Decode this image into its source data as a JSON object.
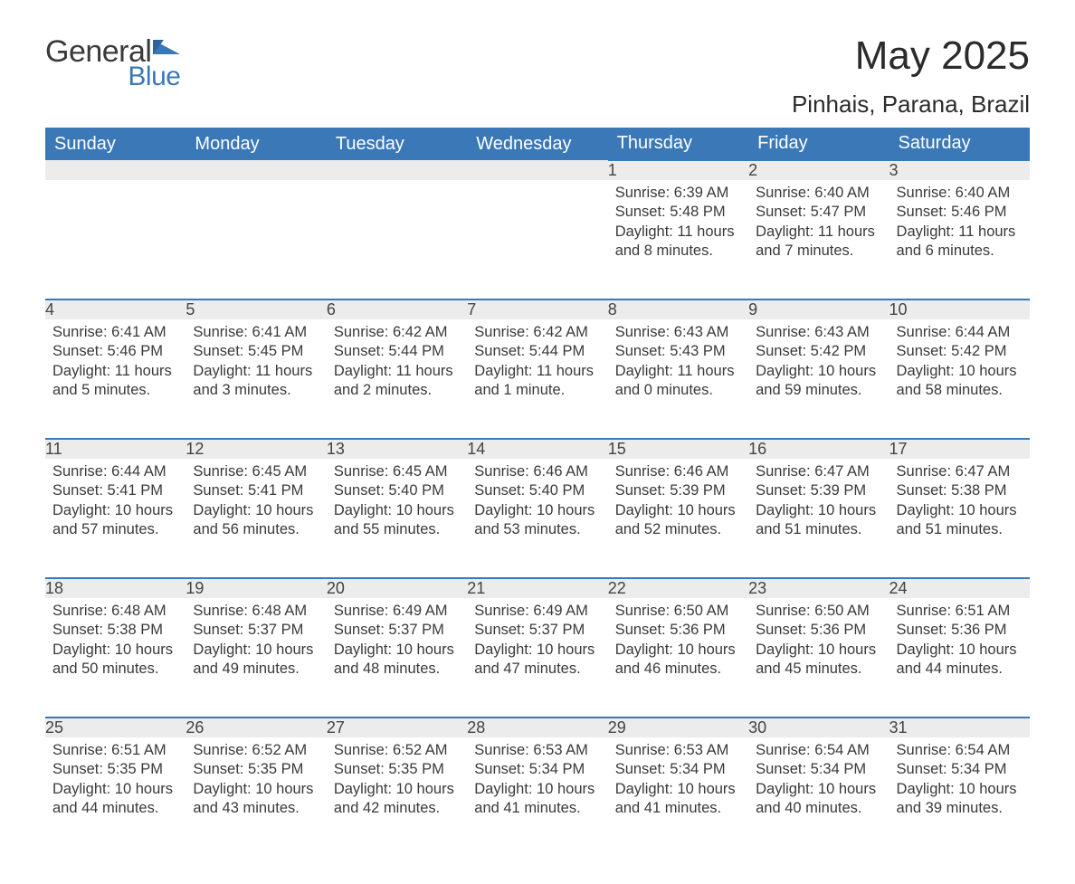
{
  "brand": {
    "word1": "General",
    "word2": "Blue",
    "accent_color": "#3a78b8"
  },
  "title": "May 2025",
  "location": "Pinhais, Parana, Brazil",
  "colors": {
    "header_bg": "#3a78b8",
    "header_text": "#ffffff",
    "daynum_bg": "#ececec",
    "daynum_border": "#3a78b8",
    "body_text": "#3a3a3a",
    "page_bg": "#ffffff"
  },
  "weekdays": [
    "Sunday",
    "Monday",
    "Tuesday",
    "Wednesday",
    "Thursday",
    "Friday",
    "Saturday"
  ],
  "weeks": [
    [
      null,
      null,
      null,
      null,
      {
        "n": "1",
        "sunrise": "6:39 AM",
        "sunset": "5:48 PM",
        "daylight": "11 hours and 8 minutes."
      },
      {
        "n": "2",
        "sunrise": "6:40 AM",
        "sunset": "5:47 PM",
        "daylight": "11 hours and 7 minutes."
      },
      {
        "n": "3",
        "sunrise": "6:40 AM",
        "sunset": "5:46 PM",
        "daylight": "11 hours and 6 minutes."
      }
    ],
    [
      {
        "n": "4",
        "sunrise": "6:41 AM",
        "sunset": "5:46 PM",
        "daylight": "11 hours and 5 minutes."
      },
      {
        "n": "5",
        "sunrise": "6:41 AM",
        "sunset": "5:45 PM",
        "daylight": "11 hours and 3 minutes."
      },
      {
        "n": "6",
        "sunrise": "6:42 AM",
        "sunset": "5:44 PM",
        "daylight": "11 hours and 2 minutes."
      },
      {
        "n": "7",
        "sunrise": "6:42 AM",
        "sunset": "5:44 PM",
        "daylight": "11 hours and 1 minute."
      },
      {
        "n": "8",
        "sunrise": "6:43 AM",
        "sunset": "5:43 PM",
        "daylight": "11 hours and 0 minutes."
      },
      {
        "n": "9",
        "sunrise": "6:43 AM",
        "sunset": "5:42 PM",
        "daylight": "10 hours and 59 minutes."
      },
      {
        "n": "10",
        "sunrise": "6:44 AM",
        "sunset": "5:42 PM",
        "daylight": "10 hours and 58 minutes."
      }
    ],
    [
      {
        "n": "11",
        "sunrise": "6:44 AM",
        "sunset": "5:41 PM",
        "daylight": "10 hours and 57 minutes."
      },
      {
        "n": "12",
        "sunrise": "6:45 AM",
        "sunset": "5:41 PM",
        "daylight": "10 hours and 56 minutes."
      },
      {
        "n": "13",
        "sunrise": "6:45 AM",
        "sunset": "5:40 PM",
        "daylight": "10 hours and 55 minutes."
      },
      {
        "n": "14",
        "sunrise": "6:46 AM",
        "sunset": "5:40 PM",
        "daylight": "10 hours and 53 minutes."
      },
      {
        "n": "15",
        "sunrise": "6:46 AM",
        "sunset": "5:39 PM",
        "daylight": "10 hours and 52 minutes."
      },
      {
        "n": "16",
        "sunrise": "6:47 AM",
        "sunset": "5:39 PM",
        "daylight": "10 hours and 51 minutes."
      },
      {
        "n": "17",
        "sunrise": "6:47 AM",
        "sunset": "5:38 PM",
        "daylight": "10 hours and 51 minutes."
      }
    ],
    [
      {
        "n": "18",
        "sunrise": "6:48 AM",
        "sunset": "5:38 PM",
        "daylight": "10 hours and 50 minutes."
      },
      {
        "n": "19",
        "sunrise": "6:48 AM",
        "sunset": "5:37 PM",
        "daylight": "10 hours and 49 minutes."
      },
      {
        "n": "20",
        "sunrise": "6:49 AM",
        "sunset": "5:37 PM",
        "daylight": "10 hours and 48 minutes."
      },
      {
        "n": "21",
        "sunrise": "6:49 AM",
        "sunset": "5:37 PM",
        "daylight": "10 hours and 47 minutes."
      },
      {
        "n": "22",
        "sunrise": "6:50 AM",
        "sunset": "5:36 PM",
        "daylight": "10 hours and 46 minutes."
      },
      {
        "n": "23",
        "sunrise": "6:50 AM",
        "sunset": "5:36 PM",
        "daylight": "10 hours and 45 minutes."
      },
      {
        "n": "24",
        "sunrise": "6:51 AM",
        "sunset": "5:36 PM",
        "daylight": "10 hours and 44 minutes."
      }
    ],
    [
      {
        "n": "25",
        "sunrise": "6:51 AM",
        "sunset": "5:35 PM",
        "daylight": "10 hours and 44 minutes."
      },
      {
        "n": "26",
        "sunrise": "6:52 AM",
        "sunset": "5:35 PM",
        "daylight": "10 hours and 43 minutes."
      },
      {
        "n": "27",
        "sunrise": "6:52 AM",
        "sunset": "5:35 PM",
        "daylight": "10 hours and 42 minutes."
      },
      {
        "n": "28",
        "sunrise": "6:53 AM",
        "sunset": "5:34 PM",
        "daylight": "10 hours and 41 minutes."
      },
      {
        "n": "29",
        "sunrise": "6:53 AM",
        "sunset": "5:34 PM",
        "daylight": "10 hours and 41 minutes."
      },
      {
        "n": "30",
        "sunrise": "6:54 AM",
        "sunset": "5:34 PM",
        "daylight": "10 hours and 40 minutes."
      },
      {
        "n": "31",
        "sunrise": "6:54 AM",
        "sunset": "5:34 PM",
        "daylight": "10 hours and 39 minutes."
      }
    ]
  ],
  "labels": {
    "sunrise": "Sunrise:",
    "sunset": "Sunset:",
    "daylight": "Daylight:"
  }
}
